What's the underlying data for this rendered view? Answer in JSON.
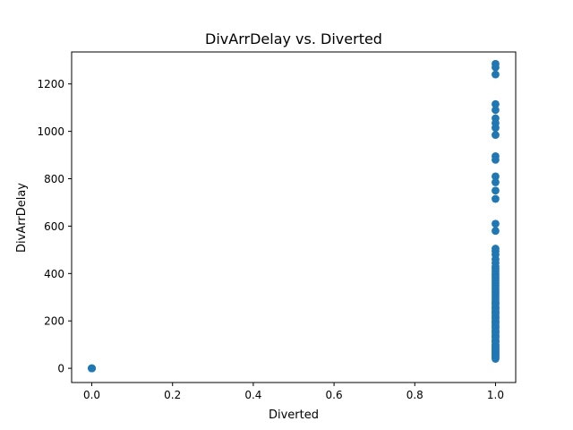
{
  "chart_data": {
    "type": "scatter",
    "title": "DivArrDelay vs. Diverted",
    "xlabel": "Diverted",
    "ylabel": "DivArrDelay",
    "xlim": [
      -0.05,
      1.05
    ],
    "ylim": [
      -60,
      1335
    ],
    "xticks": [
      0.0,
      0.2,
      0.4,
      0.6,
      0.8,
      1.0
    ],
    "xtick_labels": [
      "0.0",
      "0.2",
      "0.4",
      "0.6",
      "0.8",
      "1.0"
    ],
    "yticks": [
      0,
      200,
      400,
      600,
      800,
      1000,
      1200
    ],
    "ytick_labels": [
      "0",
      "200",
      "400",
      "600",
      "800",
      "1000",
      "1200"
    ],
    "grid": false,
    "legend": "none",
    "marker_color": "#1f77b4",
    "series": [
      {
        "x": [
          0,
          0,
          0,
          0,
          1,
          1,
          1,
          1,
          1,
          1,
          1,
          1,
          1,
          1,
          1,
          1,
          1,
          1,
          1,
          1,
          1,
          1,
          1,
          1,
          1,
          1,
          1,
          1,
          1,
          1,
          1,
          1,
          1,
          1,
          1,
          1,
          1,
          1,
          1,
          1,
          1,
          1,
          1,
          1,
          1,
          1,
          1,
          1,
          1,
          1,
          1,
          1,
          1,
          1,
          1,
          1,
          1,
          1,
          1,
          1,
          1,
          1,
          1,
          1,
          1,
          1,
          1,
          1,
          1,
          1,
          1,
          1,
          1,
          1,
          1,
          1,
          1,
          1,
          1,
          1,
          1
        ],
        "y": [
          0,
          0,
          0,
          0,
          1285,
          1270,
          1240,
          1115,
          1090,
          1055,
          1035,
          1015,
          985,
          895,
          880,
          810,
          785,
          750,
          715,
          610,
          580,
          505,
          495,
          480,
          460,
          445,
          430,
          420,
          410,
          400,
          390,
          380,
          370,
          360,
          350,
          340,
          330,
          320,
          310,
          300,
          290,
          280,
          270,
          260,
          250,
          240,
          230,
          220,
          210,
          200,
          190,
          180,
          170,
          160,
          150,
          140,
          130,
          120,
          110,
          100,
          95,
          90,
          85,
          80,
          75,
          70,
          65,
          60,
          55,
          50,
          45,
          40,
          115,
          135,
          155,
          175,
          195,
          215,
          235,
          255,
          275
        ]
      }
    ]
  }
}
